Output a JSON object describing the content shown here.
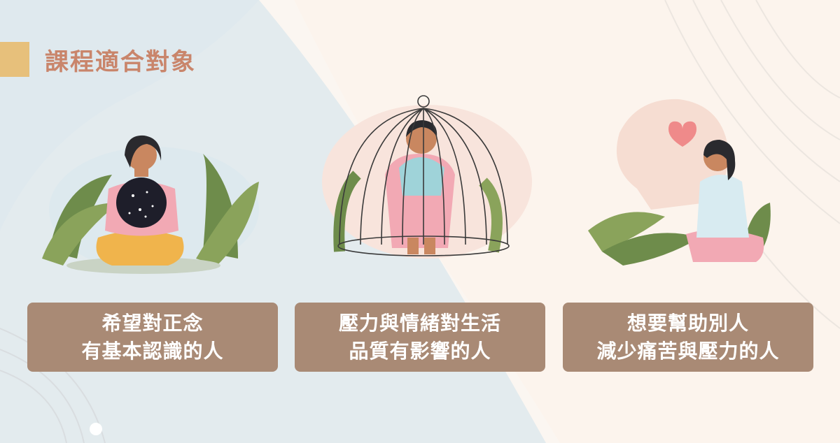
{
  "title": "課程適合對象",
  "cards": [
    {
      "line1": "希望對正念",
      "line2": "有基本認識的人",
      "illustration": "meditating-woman"
    },
    {
      "line1": "壓力與情緒對生活",
      "line2": "品質有影響的人",
      "illustration": "person-in-birdcage"
    },
    {
      "line1": "想要幫助別人",
      "line2": "減少痛苦與壓力的人",
      "illustration": "woman-with-heart-head"
    }
  ],
  "colors": {
    "title": "#c9856b",
    "accent_bar": "#e7c07b",
    "card_bg": "#a98a75",
    "card_text": "#ffffff",
    "background": "#fbf6f1"
  }
}
